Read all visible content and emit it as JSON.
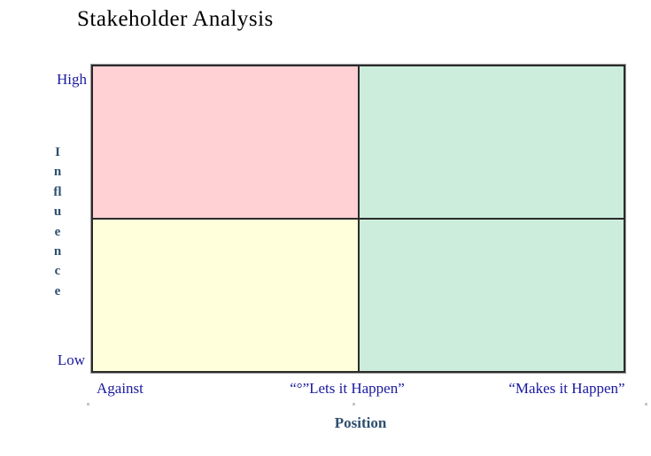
{
  "title": "Stakeholder Analysis",
  "y_axis": {
    "title": "Influence",
    "letters": [
      "I",
      "n",
      "fl",
      "u",
      "e",
      "n",
      "c",
      "e"
    ],
    "max_label": "High",
    "min_label": "Low"
  },
  "x_axis": {
    "title": "Position",
    "labels": [
      "Against",
      "“°”Lets it Happen”",
      "“Makes it Happen”"
    ]
  },
  "quadrants": {
    "top_left": {
      "color": "#ffd0d4"
    },
    "top_right": {
      "color": "#cceddc"
    },
    "bottom_left": {
      "color": "#ffffdb"
    },
    "bottom_right": {
      "color": "#cceddc"
    }
  },
  "colors": {
    "title_text": "#000000",
    "tick_label": "#1a1aa0",
    "axis_title": "#2d4f6f",
    "grid_line": "#2b2b2b"
  }
}
